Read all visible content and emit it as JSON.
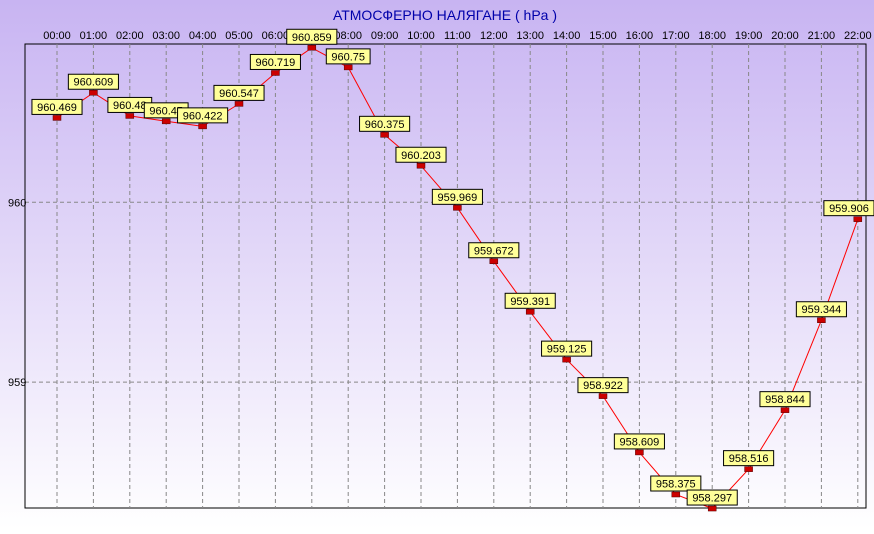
{
  "chart_data": {
    "type": "line",
    "title": "АТМОСФЕРНО НАЛЯГАНЕ  ( hPa )",
    "x": [
      "00:00",
      "01:00",
      "02:00",
      "03:00",
      "04:00",
      "05:00",
      "06:00",
      "07:00",
      "08:00",
      "09:00",
      "10:00",
      "11:00",
      "12:00",
      "13:00",
      "14:00",
      "15:00",
      "16:00",
      "17:00",
      "18:00",
      "19:00",
      "20:00",
      "21:00",
      "22:00"
    ],
    "series": [
      {
        "values": [
          960.469,
          960.609,
          960.48,
          960.45,
          960.422,
          960.547,
          960.719,
          960.859,
          960.75,
          960.375,
          960.203,
          959.969,
          959.672,
          959.391,
          959.125,
          958.922,
          958.609,
          958.375,
          958.297,
          958.516,
          958.844,
          959.344,
          959.906
        ],
        "labels": [
          "960.469",
          "960.609",
          "960.48",
          "960.45",
          "960.422",
          "960.547",
          "960.719",
          "960.859",
          "960.75",
          "960.375",
          "960.203",
          "959.969",
          "959.672",
          "959.391",
          "959.125",
          "958.922",
          "958.609",
          "958.375",
          "958.297",
          "958.516",
          "958.844",
          "959.344",
          "959.906"
        ]
      }
    ],
    "yticks": [
      959,
      960
    ],
    "ytick_labels": [
      "959",
      "960"
    ],
    "ylim": [
      958.3,
      960.88
    ],
    "grid": true,
    "colors": {
      "line": "#ff0000",
      "marker": "#cc0000",
      "label_bg": "#ffff99",
      "title": "#0000aa",
      "grid": "#888888",
      "bg_top": "#c8b4f2",
      "bg_bottom": "#ffffff"
    }
  }
}
